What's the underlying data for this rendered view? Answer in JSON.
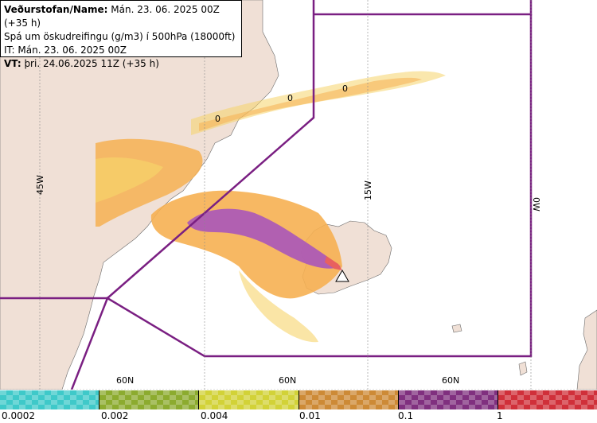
{
  "header": {
    "line1_label": "Veðurstofan/Name:",
    "line1_value": " Mán. 23. 06. 2025 00Z (+35 h)",
    "line2": "Spá um öskudreifingu (g/m3) í 500hPa (18000ft)",
    "line3": "IT: Mán. 23. 06. 2025 00Z",
    "line4_label": "VT:",
    "line4_value": " þri. 24.06.2025 11Z (+35 h)"
  },
  "map": {
    "longitude_labels": [
      "45W",
      "15W",
      "0W"
    ],
    "latitude_labels": [
      "60N",
      "60N",
      "60N"
    ],
    "contour_labels": [
      "0",
      "0",
      "0"
    ],
    "colors": {
      "land": "#f0e0d6",
      "sea": "#ffffff",
      "fir_boundary": "#7a1f82",
      "low_ash": "#f6b052",
      "mid_ash": "#ad5bb5",
      "high_ash": "#e8605f"
    },
    "icons": [
      "volcano-icon"
    ]
  },
  "legend": {
    "swatches": [
      {
        "name": "0.0002",
        "color": "#3fc9c9"
      },
      {
        "name": "0.002",
        "color": "#8cab2f"
      },
      {
        "name": "0.004",
        "color": "#d2d238"
      },
      {
        "name": "0.01",
        "color": "#cd8a36"
      },
      {
        "name": "0.1",
        "color": "#80307f"
      },
      {
        "name": "1",
        "color": "#d0303a"
      }
    ],
    "ticks": [
      "0.0002",
      "0.002",
      "0.004",
      "0.01",
      "0.1",
      "1"
    ]
  }
}
